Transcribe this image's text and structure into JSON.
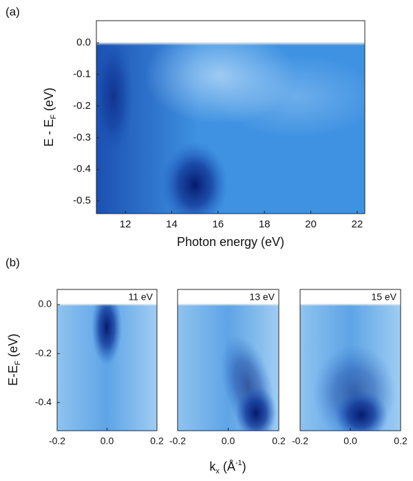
{
  "chart_data": [
    {
      "type": "heatmap",
      "panel_label": "(a)",
      "xlim": [
        10.75,
        22.33
      ],
      "ylim": [
        -0.54,
        0.07
      ],
      "xticks": [
        12,
        14,
        16,
        18,
        20,
        22
      ],
      "yticks": [
        {
          "value": 0,
          "label": "0.0"
        },
        -0.1,
        -0.2,
        -0.3,
        -0.4,
        -0.5
      ],
      "xlabel": [
        "Photon energy (eV)"
      ],
      "ylabel": [
        "E - E",
        "F",
        " (eV)"
      ]
    },
    {
      "type": "heatmap",
      "panel_label": "(b)",
      "annotation": "11 eV",
      "xlim": [
        -0.2,
        0.2
      ],
      "ylim": [
        -0.515,
        0.062
      ],
      "xticks": [
        -0.2,
        {
          "value": 0,
          "label": "0.0"
        },
        0.2
      ],
      "yticks": [
        {
          "value": 0,
          "label": "0.0"
        },
        -0.2,
        -0.4
      ],
      "ylabel": [
        "E-E",
        "F",
        " (eV)"
      ]
    },
    {
      "type": "heatmap",
      "annotation": "13 eV",
      "xlim": [
        -0.2,
        0.2
      ],
      "ylim": [
        -0.515,
        0.062
      ],
      "xticks": [
        -0.2,
        {
          "value": 0,
          "label": "0.0"
        },
        0.2
      ],
      "xlabel": [
        "k",
        "x",
        " (Å",
        "-1",
        ")"
      ]
    },
    {
      "type": "heatmap",
      "annotation": "15 eV",
      "xlim": [
        -0.2,
        0.2
      ],
      "ylim": [
        -0.515,
        0.062
      ],
      "xticks": [
        -0.2,
        {
          "value": 0,
          "label": "0.0"
        },
        0.2
      ]
    }
  ]
}
